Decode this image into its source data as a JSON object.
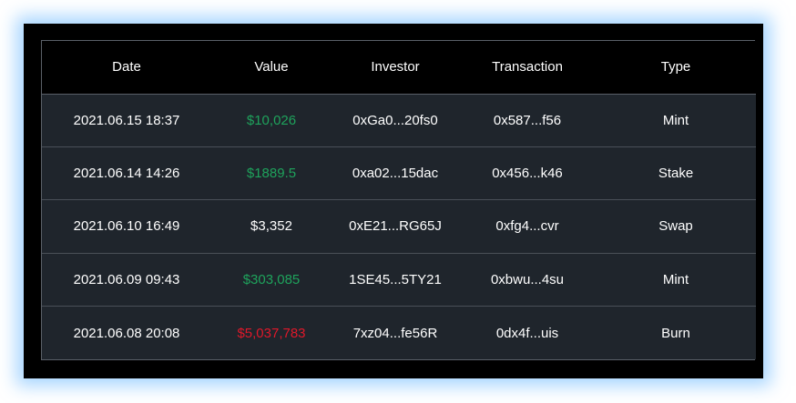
{
  "table": {
    "headers": [
      "Date",
      "Value",
      "Investor",
      "Transaction",
      "Type"
    ],
    "rows": [
      {
        "date": "2021.06.15 18:37",
        "value": "$10,026",
        "value_tone": "green",
        "investor": "0xGa0...20fs0",
        "transaction": "0x587...f56",
        "type": "Mint"
      },
      {
        "date": "2021.06.14 14:26",
        "value": "$1889.5",
        "value_tone": "green",
        "investor": "0xa02...15dac",
        "transaction": "0x456...k46",
        "type": "Stake"
      },
      {
        "date": "2021.06.10 16:49",
        "value": "$3,352",
        "value_tone": "white",
        "investor": "0xE21...RG65J",
        "transaction": "0xfg4...cvr",
        "type": "Swap"
      },
      {
        "date": "2021.06.09 09:43",
        "value": "$303,085",
        "value_tone": "green",
        "investor": "1SE45...5TY21",
        "transaction": "0xbwu...4su",
        "type": "Mint"
      },
      {
        "date": "2021.06.08 20:08",
        "value": "$5,037,783",
        "value_tone": "red",
        "investor": "7xz04...fe56R",
        "transaction": "0dx4f...uis",
        "type": "Burn"
      }
    ]
  },
  "colors": {
    "positive": "#1fa35c",
    "negative": "#e0182a",
    "neutral": "#ffffff",
    "header_bg": "#000000",
    "row_bg": "#1f252c",
    "glow": "#78beff"
  }
}
